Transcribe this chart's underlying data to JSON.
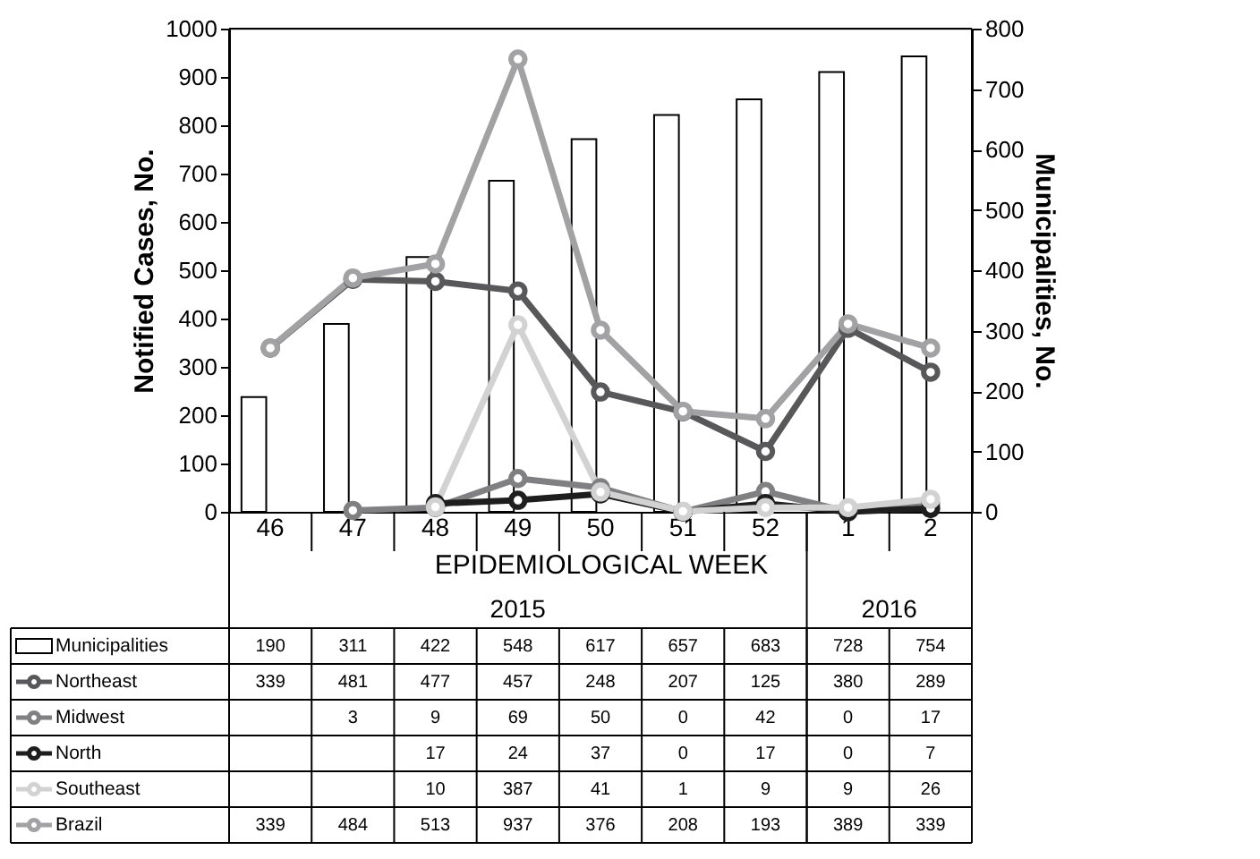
{
  "chart_data": {
    "type": "bar",
    "categories": [
      "46",
      "47",
      "48",
      "49",
      "50",
      "51",
      "52",
      "1",
      "2"
    ],
    "xlabel": "EPIDEMIOLOGICAL WEEK",
    "ylabel": "Notified Cases, No.",
    "y2label": "Municipalities, No.",
    "annotations": [
      "2015",
      "2016"
    ],
    "series": [
      {
        "name": "Municipalities",
        "axis": "y2",
        "color": "#ffffff",
        "values": [
          190,
          311,
          422,
          548,
          617,
          657,
          683,
          728,
          754
        ]
      },
      {
        "name": "Northeast",
        "type": "line",
        "color": "#58585a",
        "values": [
          339,
          481,
          477,
          457,
          248,
          207,
          125,
          380,
          289
        ]
      },
      {
        "name": "Midwest",
        "type": "line",
        "color": "#808083",
        "values": [
          null,
          3,
          9,
          69,
          50,
          0,
          42,
          0,
          17
        ]
      },
      {
        "name": "North",
        "type": "line",
        "color": "#1e1e1e",
        "values": [
          null,
          null,
          17,
          24,
          37,
          0,
          17,
          0,
          7
        ]
      },
      {
        "name": "Southeast",
        "type": "line",
        "color": "#d2d2d3",
        "values": [
          null,
          null,
          10,
          387,
          41,
          1,
          9,
          9,
          26
        ]
      },
      {
        "name": "Brazil",
        "type": "line",
        "color": "#a2a2a5",
        "values": [
          339,
          484,
          513,
          937,
          376,
          208,
          193,
          389,
          339
        ]
      }
    ],
    "ylim": [
      0,
      1000
    ],
    "yticks": [
      0,
      100,
      200,
      300,
      400,
      500,
      600,
      700,
      800,
      900,
      1000
    ],
    "y2lim": [
      0,
      800
    ],
    "y2ticks": [
      0,
      100,
      200,
      300,
      400,
      500,
      600,
      700,
      800
    ],
    "marker": "circle",
    "data_labels": true,
    "legend": "bottom",
    "grid": false
  }
}
